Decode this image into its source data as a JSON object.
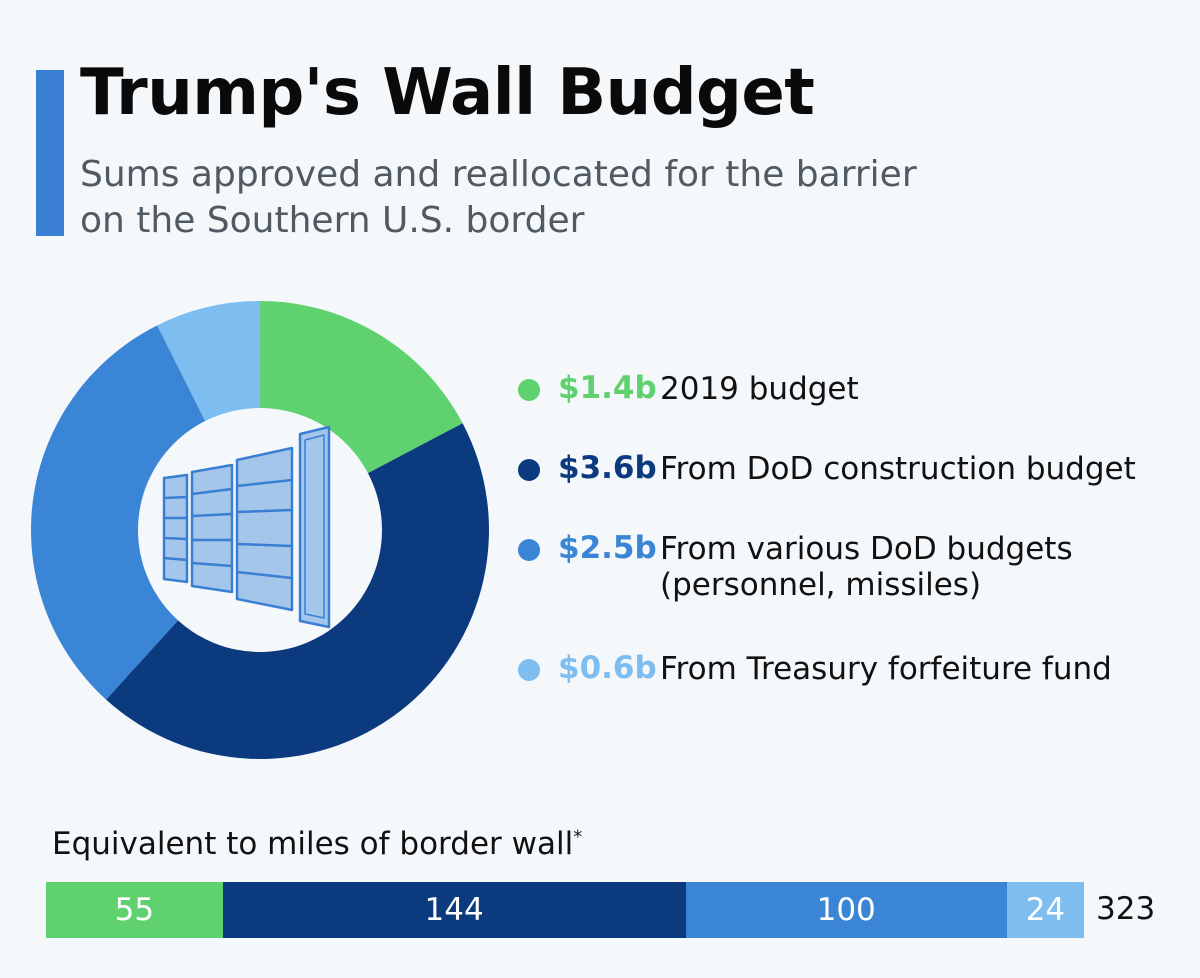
{
  "header": {
    "title": "Trump's Wall Budget",
    "subtitle_line1": "Sums approved and reallocated for the barrier",
    "subtitle_line2": "on the Southern U.S. border"
  },
  "colors": {
    "accent": "#3a7fd3",
    "green": "#5fd16e",
    "dark_blue": "#0c3a7e",
    "mid_blue": "#3a85d6",
    "light_blue": "#7dbdf0",
    "icon_fill": "#a3c6ea",
    "icon_stroke": "#3a7fd3"
  },
  "chart_data": [
    {
      "type": "pie",
      "subtype": "donut",
      "unit": "USD billions",
      "slices": [
        {
          "value": 1.4,
          "amount_label": "$1.4b",
          "label_lines": [
            "2019 budget"
          ],
          "color": "#5fd16e"
        },
        {
          "value": 3.6,
          "amount_label": "$3.6b",
          "label_lines": [
            "From DoD construction budget"
          ],
          "color": "#0c3a7e"
        },
        {
          "value": 2.5,
          "amount_label": "$2.5b",
          "label_lines": [
            "From various DoD budgets",
            "(personnel, missiles)"
          ],
          "color": "#3a85d6"
        },
        {
          "value": 0.6,
          "amount_label": "$0.6b",
          "label_lines": [
            "From Treasury forfeiture fund"
          ],
          "color": "#7dbdf0"
        }
      ],
      "center_icon": "border-wall-icon"
    },
    {
      "type": "bar",
      "subtype": "stacked-horizontal",
      "title": "Equivalent to miles of border wall",
      "title_note": "*",
      "values": [
        55,
        144,
        100,
        24
      ],
      "colors": [
        "#5fd16e",
        "#0c3a7e",
        "#3a85d6",
        "#7dbdf0"
      ],
      "total": 323
    }
  ]
}
